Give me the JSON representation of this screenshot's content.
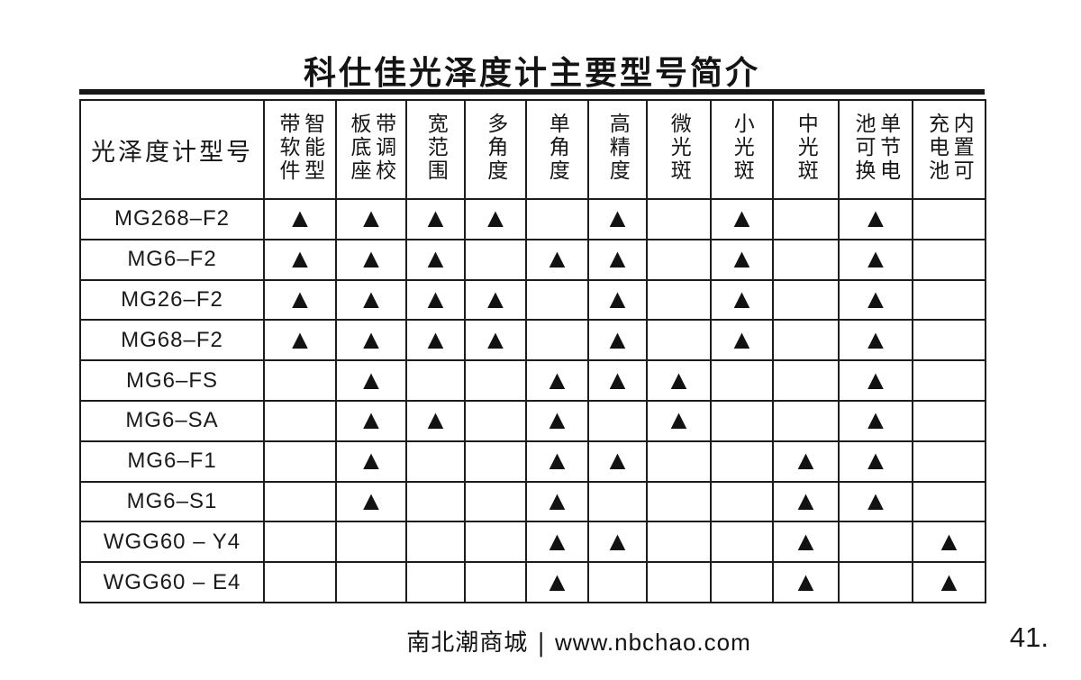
{
  "title": "科仕佳光泽度计主要型号简介",
  "table": {
    "model_header": "光泽度计型号",
    "mark_glyph": "▲",
    "columns": [
      {
        "label": "智能型带软件"
      },
      {
        "label": "带调校板底座"
      },
      {
        "label": "宽范围"
      },
      {
        "label": "多角度"
      },
      {
        "label": "单角度"
      },
      {
        "label": "高精度"
      },
      {
        "label": "微光斑"
      },
      {
        "label": "小光斑"
      },
      {
        "label": "中光斑"
      },
      {
        "label": "单节电池可换"
      },
      {
        "label": "内置可充电池"
      }
    ],
    "rows": [
      {
        "model": "MG268–F2",
        "cells": [
          "▲",
          "▲",
          "▲",
          "▲",
          "",
          "▲",
          "",
          "▲",
          "",
          "▲",
          ""
        ]
      },
      {
        "model": "MG6–F2",
        "cells": [
          "▲",
          "▲",
          "▲",
          "",
          "▲",
          "▲",
          "",
          "▲",
          "",
          "▲",
          ""
        ]
      },
      {
        "model": "MG26–F2",
        "cells": [
          "▲",
          "▲",
          "▲",
          "▲",
          "",
          "▲",
          "",
          "▲",
          "",
          "▲",
          ""
        ]
      },
      {
        "model": "MG68–F2",
        "cells": [
          "▲",
          "▲",
          "▲",
          "▲",
          "",
          "▲",
          "",
          "▲",
          "",
          "▲",
          ""
        ]
      },
      {
        "model": "MG6–FS",
        "cells": [
          "",
          "▲",
          "",
          "",
          "▲",
          "▲",
          "▲",
          "",
          "",
          "▲",
          ""
        ]
      },
      {
        "model": "MG6–SA",
        "cells": [
          "",
          "▲",
          "▲",
          "",
          "▲",
          "",
          "▲",
          "",
          "",
          "▲",
          ""
        ]
      },
      {
        "model": "MG6–F1",
        "cells": [
          "",
          "▲",
          "",
          "",
          "▲",
          "▲",
          "",
          "",
          "▲",
          "▲",
          ""
        ]
      },
      {
        "model": "MG6–S1",
        "cells": [
          "",
          "▲",
          "",
          "",
          "▲",
          "",
          "",
          "",
          "▲",
          "▲",
          ""
        ]
      },
      {
        "model": "WGG60 – Y4",
        "cells": [
          "",
          "",
          "",
          "",
          "▲",
          "▲",
          "",
          "",
          "▲",
          "",
          "▲"
        ]
      },
      {
        "model": "WGG60 – E4",
        "cells": [
          "",
          "",
          "",
          "",
          "▲",
          "",
          "",
          "",
          "▲",
          "",
          "▲"
        ]
      }
    ]
  },
  "footer": {
    "store": "南北潮商城",
    "separator": "|",
    "url": "www.nbchao.com",
    "page_number": "41."
  }
}
